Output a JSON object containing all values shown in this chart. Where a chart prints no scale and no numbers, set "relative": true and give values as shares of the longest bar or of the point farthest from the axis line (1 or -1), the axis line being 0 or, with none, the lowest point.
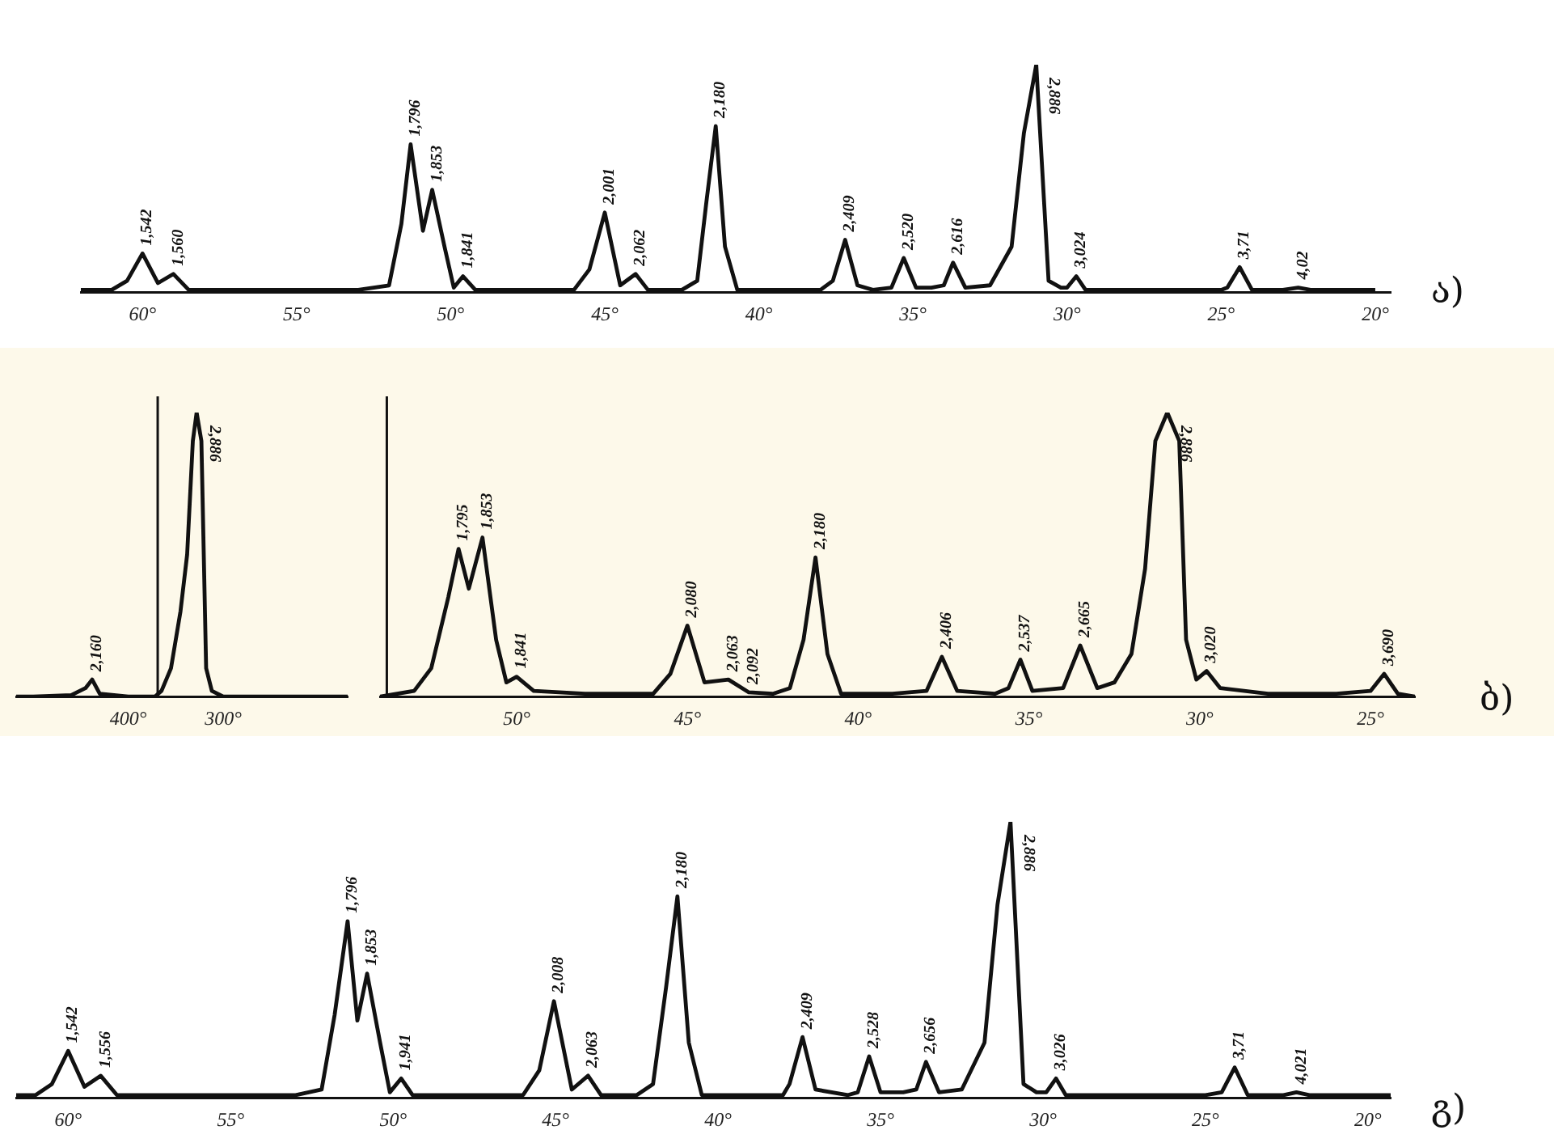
{
  "chart_data": [
    {
      "type": "line",
      "relative": true,
      "xlim": [
        62,
        19.5
      ],
      "xticks": [
        {
          "value": 60,
          "label": "60°"
        },
        {
          "value": 55,
          "label": "55°"
        },
        {
          "value": 50,
          "label": "50°"
        },
        {
          "value": 45,
          "label": "45°"
        },
        {
          "value": 40,
          "label": "40°"
        },
        {
          "value": 35,
          "label": "35°"
        },
        {
          "value": 30,
          "label": "30°"
        },
        {
          "value": 25,
          "label": "25°"
        },
        {
          "value": 20,
          "label": "20°"
        }
      ],
      "series": [
        {
          "color": "#111111",
          "x": [
            62,
            61,
            60.5,
            60,
            59.5,
            59,
            58.5,
            57,
            55,
            53,
            52,
            51.6,
            51.3,
            50.9,
            50.6,
            50.2,
            49.9,
            49.6,
            49.2,
            48,
            46,
            45.5,
            45,
            44.5,
            44,
            43.6,
            42.5,
            42,
            41.7,
            41.4,
            41.1,
            40.7,
            39,
            38,
            37.6,
            37.2,
            36.8,
            36.3,
            35.7,
            35.3,
            34.9,
            34.4,
            34,
            33.7,
            33.3,
            32.5,
            31.8,
            31.4,
            31,
            30.6,
            30.2,
            30,
            29.7,
            29.4,
            28,
            26,
            25,
            24.8,
            24.4,
            24,
            23,
            22.5,
            22.1,
            21,
            20
          ],
          "values": [
            0.01,
            0.01,
            0.05,
            0.17,
            0.04,
            0.08,
            0.01,
            0.01,
            0.01,
            0.01,
            0.03,
            0.3,
            0.65,
            0.27,
            0.45,
            0.2,
            0.02,
            0.07,
            0.01,
            0.01,
            0.01,
            0.1,
            0.35,
            0.03,
            0.08,
            0.01,
            0.01,
            0.05,
            0.4,
            0.73,
            0.2,
            0.01,
            0.01,
            0.01,
            0.05,
            0.23,
            0.03,
            0.01,
            0.02,
            0.15,
            0.02,
            0.02,
            0.03,
            0.13,
            0.02,
            0.03,
            0.2,
            0.7,
            1,
            0.05,
            0.02,
            0.02,
            0.07,
            0.01,
            0.01,
            0.01,
            0.01,
            0.02,
            0.11,
            0.01,
            0.01,
            0.02,
            0.01,
            0.01,
            0.01
          ]
        }
      ],
      "annotations": [
        {
          "text": "1,542",
          "x": 60,
          "y": 0.17
        },
        {
          "text": "1,560",
          "x": 59,
          "y": 0.08
        },
        {
          "text": "1,796",
          "x": 51.3,
          "y": 0.65
        },
        {
          "text": "1,853",
          "x": 50.6,
          "y": 0.45
        },
        {
          "text": "1,841",
          "x": 49.6,
          "y": 0.07
        },
        {
          "text": "2,001",
          "x": 45,
          "y": 0.35
        },
        {
          "text": "2,062",
          "x": 44,
          "y": 0.08
        },
        {
          "text": "2,180",
          "x": 41.4,
          "y": 0.73
        },
        {
          "text": "2,409",
          "x": 37.2,
          "y": 0.23
        },
        {
          "text": "2,520",
          "x": 35.3,
          "y": 0.15
        },
        {
          "text": "2,616",
          "x": 33.7,
          "y": 0.13
        },
        {
          "text": "2,886",
          "x": 31,
          "y": 1
        },
        {
          "text": "3,024",
          "x": 29.7,
          "y": 0.07
        },
        {
          "text": "3,71",
          "x": 24.4,
          "y": 0.11
        },
        {
          "text": "4,02",
          "x": 22.5,
          "y": 0.02
        },
        "ა)"
      ]
    },
    {
      "type": "line",
      "relative": true,
      "xlim": [
        518,
        169
      ],
      "xticks": [
        {
          "value": 400,
          "label": "400°"
        },
        {
          "value": 300,
          "label": "300°"
        }
      ],
      "series": [
        {
          "color": "#111111",
          "x": [
            518,
            500,
            460,
            445,
            438,
            430,
            400,
            372,
            365,
            355,
            345,
            338,
            332,
            328,
            323,
            318,
            312,
            300,
            290,
            169
          ],
          "values": [
            0,
            0,
            0.005,
            0.03,
            0.06,
            0.01,
            0,
            0,
            0.02,
            0.1,
            0.3,
            0.5,
            0.9,
            1,
            0.9,
            0.1,
            0.02,
            0,
            0,
            0
          ]
        }
      ],
      "ref_lines": [
        {
          "axis": "x",
          "value": 369
        }
      ],
      "annotations": [
        {
          "text": "2,160",
          "x": 438,
          "y": 0.06
        },
        {
          "text": "2,886",
          "x": 328,
          "y": 1
        }
      ]
    },
    {
      "type": "line",
      "relative": true,
      "xlim": [
        54,
        23.7
      ],
      "xticks": [
        {
          "value": 50,
          "label": "50°"
        },
        {
          "value": 45,
          "label": "45°"
        },
        {
          "value": 40,
          "label": "40°"
        },
        {
          "value": 35,
          "label": "35°"
        },
        {
          "value": 30,
          "label": "30°"
        },
        {
          "value": 25,
          "label": "25°"
        }
      ],
      "series": [
        {
          "color": "#111111",
          "x": [
            54,
            53,
            52.5,
            52,
            51.7,
            51.4,
            51,
            50.6,
            50.3,
            50,
            49.5,
            48,
            46,
            45.5,
            45,
            44.5,
            43.8,
            43.2,
            42.5,
            42,
            41.6,
            41.25,
            40.9,
            40.5,
            39,
            38,
            37.55,
            37.1,
            36,
            35.6,
            35.25,
            34.9,
            34,
            33.5,
            33,
            32.5,
            32,
            31.6,
            31.3,
            30.95,
            30.6,
            30.4,
            30.1,
            29.8,
            29.4,
            28,
            26,
            25,
            24.6,
            24.2,
            23.7
          ],
          "values": [
            0,
            0.02,
            0.1,
            0.35,
            0.52,
            0.38,
            0.56,
            0.2,
            0.05,
            0.07,
            0.02,
            0.01,
            0.01,
            0.08,
            0.25,
            0.05,
            0.06,
            0.015,
            0.01,
            0.03,
            0.2,
            0.49,
            0.15,
            0.01,
            0.01,
            0.02,
            0.14,
            0.02,
            0.01,
            0.03,
            0.13,
            0.02,
            0.03,
            0.18,
            0.03,
            0.05,
            0.15,
            0.45,
            0.9,
            1,
            0.9,
            0.2,
            0.06,
            0.09,
            0.03,
            0.01,
            0.01,
            0.02,
            0.08,
            0.01,
            0
          ]
        }
      ],
      "ref_lines": [
        {
          "axis": "x",
          "value": 53.8
        }
      ],
      "annotations": [
        {
          "text": "1,795",
          "x": 51.7,
          "y": 0.52
        },
        {
          "text": "1,853",
          "x": 51,
          "y": 0.56
        },
        {
          "text": "1,841",
          "x": 50,
          "y": 0.07
        },
        {
          "text": "2,080",
          "x": 45,
          "y": 0.25
        },
        {
          "text": "2,063",
          "x": 43.8,
          "y": 0.06
        },
        {
          "text": "2,092",
          "x": 43.2,
          "y": 0.015
        },
        {
          "text": "2,180",
          "x": 41.25,
          "y": 0.49
        },
        {
          "text": "2,406",
          "x": 37.55,
          "y": 0.14
        },
        {
          "text": "2,537",
          "x": 35.25,
          "y": 0.13
        },
        {
          "text": "2,665",
          "x": 33.5,
          "y": 0.18
        },
        {
          "text": "2,886",
          "x": 30.95,
          "y": 1
        },
        {
          "text": "3,020",
          "x": 29.8,
          "y": 0.09
        },
        {
          "text": "3,690",
          "x": 24.6,
          "y": 0.08
        },
        "ბ)"
      ]
    },
    {
      "type": "line",
      "relative": true,
      "xlim": [
        61.6,
        19.3
      ],
      "xticks": [
        {
          "value": 60,
          "label": "60°"
        },
        {
          "value": 55,
          "label": "55°"
        },
        {
          "value": 50,
          "label": "50°"
        },
        {
          "value": 45,
          "label": "45°"
        },
        {
          "value": 40,
          "label": "40°"
        },
        {
          "value": 35,
          "label": "35°"
        },
        {
          "value": 30,
          "label": "30°"
        },
        {
          "value": 25,
          "label": "25°"
        },
        {
          "value": 20,
          "label": "20°"
        }
      ],
      "series": [
        {
          "color": "#111111",
          "x": [
            61.6,
            61,
            60.5,
            60,
            59.5,
            59,
            58.5,
            57,
            55,
            53,
            52.2,
            51.8,
            51.4,
            51.1,
            50.8,
            50.4,
            50.1,
            49.75,
            49.4,
            48,
            46,
            45.5,
            45.05,
            44.5,
            44,
            43.6,
            42.5,
            42,
            41.6,
            41.25,
            40.9,
            40.5,
            39,
            38,
            37.8,
            37.4,
            37,
            36,
            35.7,
            35.35,
            35,
            34.3,
            33.9,
            33.6,
            33.2,
            32.5,
            31.8,
            31.4,
            31,
            30.6,
            30.2,
            29.9,
            29.6,
            29.3,
            28,
            26,
            25,
            24.5,
            24.1,
            23.7,
            22.6,
            22.2,
            21.8,
            20,
            19.3
          ],
          "values": [
            0.01,
            0.01,
            0.05,
            0.17,
            0.04,
            0.08,
            0.01,
            0.01,
            0.01,
            0.01,
            0.03,
            0.3,
            0.64,
            0.28,
            0.45,
            0.2,
            0.02,
            0.07,
            0.01,
            0.01,
            0.01,
            0.1,
            0.35,
            0.03,
            0.08,
            0.01,
            0.01,
            0.05,
            0.4,
            0.73,
            0.2,
            0.01,
            0.01,
            0.01,
            0.05,
            0.22,
            0.03,
            0.01,
            0.02,
            0.15,
            0.02,
            0.02,
            0.03,
            0.13,
            0.02,
            0.03,
            0.2,
            0.7,
            1,
            0.05,
            0.02,
            0.02,
            0.07,
            0.01,
            0.01,
            0.01,
            0.01,
            0.02,
            0.11,
            0.01,
            0.01,
            0.02,
            0.01,
            0.01,
            0.01
          ]
        }
      ],
      "annotations": [
        {
          "text": "1,542",
          "x": 60,
          "y": 0.17
        },
        {
          "text": "1,556",
          "x": 59,
          "y": 0.08
        },
        {
          "text": "1,796",
          "x": 51.4,
          "y": 0.64
        },
        {
          "text": "1,853",
          "x": 50.8,
          "y": 0.45
        },
        {
          "text": "1,941",
          "x": 49.75,
          "y": 0.07
        },
        {
          "text": "2,008",
          "x": 45.05,
          "y": 0.35
        },
        {
          "text": "2,063",
          "x": 44,
          "y": 0.08
        },
        {
          "text": "2,180",
          "x": 41.25,
          "y": 0.73
        },
        {
          "text": "2,409",
          "x": 37.4,
          "y": 0.22
        },
        {
          "text": "2,528",
          "x": 35.35,
          "y": 0.15
        },
        {
          "text": "2,656",
          "x": 33.6,
          "y": 0.13
        },
        {
          "text": "2,886",
          "x": 31,
          "y": 1
        },
        {
          "text": "3,026",
          "x": 29.6,
          "y": 0.07
        },
        {
          "text": "3,71",
          "x": 24.1,
          "y": 0.11
        },
        {
          "text": "4,021",
          "x": 22.2,
          "y": 0.02
        },
        "გ)"
      ]
    }
  ]
}
